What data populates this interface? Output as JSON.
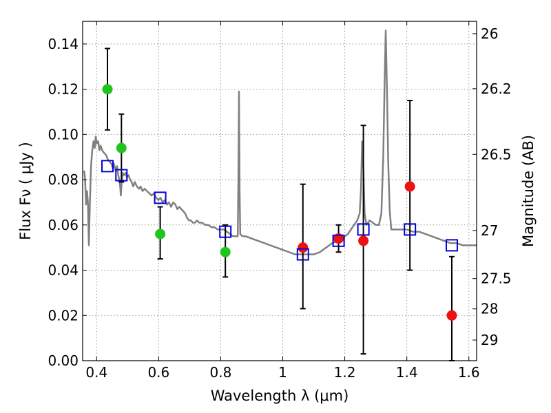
{
  "chart_data": {
    "type": "scatter",
    "xlabel": "Wavelength  λ (μm)",
    "ylabel": "Flux  Fν  ( μJy )",
    "y2label": "Magnitude (AB)",
    "xlim": [
      0.355,
      1.625
    ],
    "ylim": [
      0.0,
      0.15
    ],
    "grid": true,
    "x_ticks": [
      0.4,
      0.6,
      0.8,
      1.0,
      1.2,
      1.4,
      1.6
    ],
    "x_tick_labels": [
      "0.4",
      "0.6",
      "0.8",
      "1",
      "1.2",
      "1.4",
      "1.6"
    ],
    "y_ticks": [
      0.0,
      0.02,
      0.04,
      0.06,
      0.08,
      0.1,
      0.12,
      0.14
    ],
    "y_tick_labels": [
      "0.00",
      "0.02",
      "0.04",
      "0.06",
      "0.08",
      "0.10",
      "0.12",
      "0.14"
    ],
    "y2_ticks": [
      {
        "mag": 26,
        "label": "26"
      },
      {
        "mag": 26.2,
        "label": "26.2"
      },
      {
        "mag": 26.5,
        "label": "26.5"
      },
      {
        "mag": 27,
        "label": "27"
      },
      {
        "mag": 27.5,
        "label": "27.5"
      },
      {
        "mag": 28,
        "label": "28"
      },
      {
        "mag": 29,
        "label": "29"
      }
    ],
    "colors": {
      "model": "#808080",
      "optical_points": "#1fc41f",
      "nir_points": "#ee1111",
      "model_photometry": "#0000dd",
      "errorbar": "#000000",
      "grid": "#999999"
    },
    "series": [
      {
        "role": "model_sed",
        "style": "line",
        "points": [
          [
            0.36,
            0.084
          ],
          [
            0.363,
            0.08
          ],
          [
            0.366,
            0.069
          ],
          [
            0.369,
            0.075
          ],
          [
            0.372,
            0.07
          ],
          [
            0.375,
            0.051
          ],
          [
            0.378,
            0.068
          ],
          [
            0.382,
            0.086
          ],
          [
            0.386,
            0.093
          ],
          [
            0.39,
            0.097
          ],
          [
            0.394,
            0.094
          ],
          [
            0.397,
            0.099
          ],
          [
            0.401,
            0.096
          ],
          [
            0.405,
            0.097
          ],
          [
            0.409,
            0.093
          ],
          [
            0.413,
            0.095
          ],
          [
            0.418,
            0.093
          ],
          [
            0.423,
            0.092
          ],
          [
            0.43,
            0.091
          ],
          [
            0.436,
            0.089
          ],
          [
            0.442,
            0.088
          ],
          [
            0.448,
            0.087
          ],
          [
            0.452,
            0.085
          ],
          [
            0.456,
            0.087
          ],
          [
            0.461,
            0.084
          ],
          [
            0.466,
            0.086
          ],
          [
            0.47,
            0.082
          ],
          [
            0.474,
            0.079
          ],
          [
            0.476,
            0.077
          ],
          [
            0.478,
            0.073
          ],
          [
            0.481,
            0.079
          ],
          [
            0.484,
            0.083
          ],
          [
            0.488,
            0.082
          ],
          [
            0.493,
            0.083
          ],
          [
            0.498,
            0.081
          ],
          [
            0.503,
            0.082
          ],
          [
            0.508,
            0.08
          ],
          [
            0.513,
            0.079
          ],
          [
            0.518,
            0.077
          ],
          [
            0.523,
            0.079
          ],
          [
            0.53,
            0.077
          ],
          [
            0.537,
            0.076
          ],
          [
            0.542,
            0.077
          ],
          [
            0.548,
            0.075
          ],
          [
            0.555,
            0.076
          ],
          [
            0.562,
            0.075
          ],
          [
            0.57,
            0.074
          ],
          [
            0.577,
            0.073
          ],
          [
            0.585,
            0.074
          ],
          [
            0.592,
            0.072
          ],
          [
            0.599,
            0.071
          ],
          [
            0.606,
            0.072
          ],
          [
            0.613,
            0.07
          ],
          [
            0.62,
            0.071
          ],
          [
            0.627,
            0.069
          ],
          [
            0.633,
            0.07
          ],
          [
            0.64,
            0.068
          ],
          [
            0.647,
            0.07
          ],
          [
            0.654,
            0.069
          ],
          [
            0.66,
            0.067
          ],
          [
            0.667,
            0.068
          ],
          [
            0.673,
            0.067
          ],
          [
            0.68,
            0.066
          ],
          [
            0.686,
            0.065
          ],
          [
            0.692,
            0.063
          ],
          [
            0.698,
            0.062
          ],
          [
            0.704,
            0.062
          ],
          [
            0.71,
            0.061
          ],
          [
            0.717,
            0.061
          ],
          [
            0.724,
            0.062
          ],
          [
            0.731,
            0.061
          ],
          [
            0.74,
            0.061
          ],
          [
            0.75,
            0.06
          ],
          [
            0.76,
            0.06
          ],
          [
            0.77,
            0.059
          ],
          [
            0.78,
            0.059
          ],
          [
            0.79,
            0.058
          ],
          [
            0.8,
            0.058
          ],
          [
            0.81,
            0.058
          ],
          [
            0.82,
            0.057
          ],
          [
            0.83,
            0.056
          ],
          [
            0.84,
            0.055
          ],
          [
            0.85,
            0.055
          ],
          [
            0.855,
            0.055
          ],
          [
            0.857,
            0.08
          ],
          [
            0.859,
            0.119
          ],
          [
            0.861,
            0.075
          ],
          [
            0.863,
            0.056
          ],
          [
            0.87,
            0.055
          ],
          [
            0.88,
            0.055
          ],
          [
            0.9,
            0.054
          ],
          [
            0.92,
            0.053
          ],
          [
            0.94,
            0.052
          ],
          [
            0.96,
            0.051
          ],
          [
            0.98,
            0.05
          ],
          [
            1.0,
            0.049
          ],
          [
            1.02,
            0.048
          ],
          [
            1.04,
            0.047
          ],
          [
            1.06,
            0.047
          ],
          [
            1.08,
            0.047
          ],
          [
            1.1,
            0.047
          ],
          [
            1.12,
            0.048
          ],
          [
            1.14,
            0.05
          ],
          [
            1.16,
            0.052
          ],
          [
            1.18,
            0.053
          ],
          [
            1.2,
            0.055
          ],
          [
            1.21,
            0.056
          ],
          [
            1.22,
            0.058
          ],
          [
            1.23,
            0.06
          ],
          [
            1.24,
            0.062
          ],
          [
            1.248,
            0.065
          ],
          [
            1.252,
            0.075
          ],
          [
            1.256,
            0.097
          ],
          [
            1.26,
            0.085
          ],
          [
            1.264,
            0.065
          ],
          [
            1.27,
            0.06
          ],
          [
            1.28,
            0.062
          ],
          [
            1.29,
            0.061
          ],
          [
            1.3,
            0.06
          ],
          [
            1.31,
            0.06
          ],
          [
            1.318,
            0.065
          ],
          [
            1.324,
            0.09
          ],
          [
            1.328,
            0.12
          ],
          [
            1.332,
            0.146
          ],
          [
            1.336,
            0.12
          ],
          [
            1.34,
            0.088
          ],
          [
            1.345,
            0.066
          ],
          [
            1.35,
            0.058
          ],
          [
            1.36,
            0.058
          ],
          [
            1.38,
            0.058
          ],
          [
            1.4,
            0.058
          ],
          [
            1.42,
            0.057
          ],
          [
            1.44,
            0.057
          ],
          [
            1.46,
            0.056
          ],
          [
            1.48,
            0.055
          ],
          [
            1.5,
            0.054
          ],
          [
            1.52,
            0.053
          ],
          [
            1.54,
            0.052
          ],
          [
            1.56,
            0.052
          ],
          [
            1.58,
            0.051
          ],
          [
            1.6,
            0.051
          ],
          [
            1.625,
            0.051
          ]
        ]
      },
      {
        "role": "observed_optical",
        "style": "marker",
        "marker": "circle",
        "points": [
          {
            "x": 0.435,
            "y": 0.12,
            "yerr_low": 0.102,
            "yerr_high": 0.138
          },
          {
            "x": 0.48,
            "y": 0.094,
            "yerr_low": 0.079,
            "yerr_high": 0.109
          },
          {
            "x": 0.605,
            "y": 0.056,
            "yerr_low": 0.045,
            "yerr_high": 0.068
          },
          {
            "x": 0.815,
            "y": 0.048,
            "yerr_low": 0.037,
            "yerr_high": 0.06
          }
        ]
      },
      {
        "role": "observed_nir",
        "style": "marker",
        "marker": "circle",
        "points": [
          {
            "x": 1.065,
            "y": 0.05,
            "yerr_low": 0.023,
            "yerr_high": 0.078
          },
          {
            "x": 1.18,
            "y": 0.054,
            "yerr_low": 0.048,
            "yerr_high": 0.06
          },
          {
            "x": 1.26,
            "y": 0.053,
            "yerr_low": 0.003,
            "yerr_high": 0.104
          },
          {
            "x": 1.41,
            "y": 0.077,
            "yerr_low": 0.04,
            "yerr_high": 0.115
          },
          {
            "x": 1.545,
            "y": 0.02,
            "yerr_low": 0.0,
            "yerr_high": 0.046
          }
        ]
      },
      {
        "role": "model_photometry",
        "style": "marker",
        "marker": "open_square",
        "points": [
          {
            "x": 0.435,
            "y": 0.086
          },
          {
            "x": 0.48,
            "y": 0.082
          },
          {
            "x": 0.605,
            "y": 0.072
          },
          {
            "x": 0.815,
            "y": 0.057
          },
          {
            "x": 1.065,
            "y": 0.047
          },
          {
            "x": 1.18,
            "y": 0.053
          },
          {
            "x": 1.26,
            "y": 0.058
          },
          {
            "x": 1.41,
            "y": 0.058
          },
          {
            "x": 1.545,
            "y": 0.051
          }
        ]
      }
    ]
  }
}
